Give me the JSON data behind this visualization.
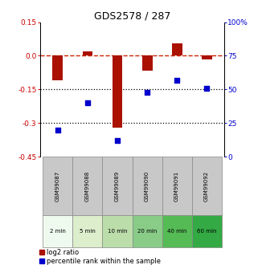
{
  "title": "GDS2578 / 287",
  "samples": [
    "GSM99087",
    "GSM99088",
    "GSM99089",
    "GSM99090",
    "GSM99091",
    "GSM99092"
  ],
  "time_labels": [
    "2 min",
    "5 min",
    "10 min",
    "20 min",
    "40 min",
    "60 min"
  ],
  "log2_ratio": [
    -0.11,
    0.02,
    -0.32,
    -0.065,
    0.055,
    -0.015
  ],
  "percentile_rank": [
    20,
    40,
    12,
    48,
    57,
    51
  ],
  "bar_color": "#aa1100",
  "dot_color": "#0000cc",
  "dashed_line_color": "#cc2200",
  "dotted_line_color": "#000000",
  "left_yticks": [
    0.15,
    0.0,
    -0.15,
    -0.3,
    -0.45
  ],
  "right_yticks": [
    100,
    75,
    50,
    25,
    0
  ],
  "right_yticklabels": [
    "100%",
    "75",
    "50",
    "25",
    "0"
  ],
  "left_ytick_color": "#cc0000",
  "right_ytick_color": "#0000cc",
  "title_fontsize": 9,
  "green_colors": [
    "#eefaee",
    "#ddeecc",
    "#bbddaa",
    "#88cc88",
    "#55bb55",
    "#33aa44"
  ],
  "gray_color": "#c8c8c8",
  "cell_border_color": "#888888",
  "legend_label1": "log2 ratio",
  "legend_label2": "percentile rank within the sample"
}
